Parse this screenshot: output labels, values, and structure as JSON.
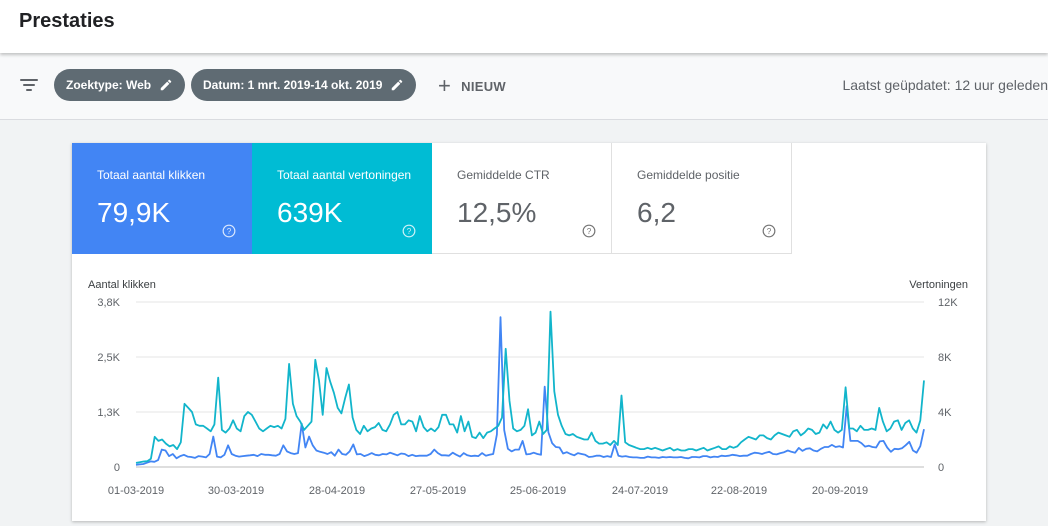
{
  "page": {
    "title": "Prestaties"
  },
  "filterbar": {
    "chips": [
      {
        "label": "Zoektype: Web"
      },
      {
        "label": "Datum: 1 mrt. 2019-14 okt. 2019"
      }
    ],
    "new_label": "NIEUW",
    "updated": "Laatst geüpdatet: 12 uur geleden"
  },
  "metrics": [
    {
      "label": "Totaal aantal klikken",
      "value": "79,9K",
      "color": "#4285f4"
    },
    {
      "label": "Totaal aantal vertoningen",
      "value": "639K",
      "color": "#00bcd4"
    },
    {
      "label": "Gemiddelde CTR",
      "value": "12,5%"
    },
    {
      "label": "Gemiddelde positie",
      "value": "6,2"
    }
  ],
  "chart_data": {
    "type": "line",
    "left_axis_title": "Aantal klikken",
    "right_axis_title": "Vertoningen",
    "left_ticks": [
      "3,8K",
      "2,5K",
      "1,3K",
      "0"
    ],
    "right_ticks": [
      "12K",
      "8K",
      "4K",
      "0"
    ],
    "x_ticks": [
      "01-03-2019",
      "30-03-2019",
      "28-04-2019",
      "27-05-2019",
      "25-06-2019",
      "24-07-2019",
      "22-08-2019",
      "20-09-2019"
    ],
    "left_ylim": [
      0,
      3800
    ],
    "right_ylim": [
      0,
      12000
    ],
    "grid": true,
    "series": [
      {
        "name": "Totaal aantal klikken",
        "axis": "left",
        "color": "#4285f4",
        "values": [
          50,
          60,
          70,
          100,
          130,
          120,
          160,
          400,
          380,
          250,
          300,
          200,
          250,
          280,
          240,
          230,
          210,
          250,
          240,
          220,
          300,
          700,
          240,
          220,
          280,
          500,
          300,
          260,
          240,
          250,
          260,
          270,
          280,
          250,
          300,
          280,
          280,
          270,
          260,
          300,
          500,
          360,
          320,
          300,
          320,
          1000,
          450,
          700,
          500,
          380,
          350,
          330,
          300,
          340,
          260,
          400,
          300,
          280,
          360,
          520,
          290,
          300,
          250,
          280,
          320,
          280,
          270,
          300,
          290,
          330,
          300,
          270,
          310,
          300,
          250,
          280,
          250,
          260,
          260,
          260,
          300,
          400,
          320,
          270,
          270,
          260,
          330,
          280,
          240,
          320,
          270,
          250,
          260,
          250,
          320,
          260,
          280,
          300,
          750,
          3450,
          850,
          420,
          360,
          400,
          400,
          600,
          290,
          300,
          330,
          300,
          280,
          1850,
          800,
          550,
          460,
          450,
          310,
          340,
          300,
          270,
          320,
          300,
          280,
          230,
          240,
          260,
          260,
          230,
          250,
          230,
          520,
          260,
          240,
          250,
          230,
          220,
          220,
          210,
          210,
          240,
          220,
          220,
          210,
          230,
          220,
          230,
          220,
          220,
          230,
          210,
          200,
          230,
          230,
          220,
          250,
          250,
          220,
          240,
          230,
          260,
          250,
          260,
          280,
          270,
          250,
          260,
          260,
          300,
          330,
          320,
          300,
          330,
          350,
          300,
          290,
          320,
          340,
          380,
          350,
          330,
          440,
          370,
          420,
          430,
          380,
          360,
          420,
          460,
          460,
          510,
          460,
          480,
          450,
          1400,
          600,
          600,
          600,
          550,
          470,
          490,
          460,
          450,
          590,
          600,
          450,
          350,
          420,
          410,
          430,
          500,
          580,
          380,
          330,
          480,
          870
        ]
      },
      {
        "name": "Totaal aantal vertoningen",
        "axis": "right",
        "color": "#12b5cb",
        "values": [
          300,
          350,
          400,
          420,
          600,
          2200,
          1900,
          2000,
          1700,
          1500,
          1600,
          1300,
          1800,
          4600,
          4300,
          4000,
          3100,
          3000,
          3000,
          2800,
          2600,
          3100,
          6500,
          2700,
          2500,
          2800,
          3400,
          2800,
          2600,
          3700,
          4000,
          3800,
          3300,
          2800,
          2600,
          2800,
          3000,
          2900,
          3000,
          2800,
          3500,
          7500,
          4600,
          3700,
          3300,
          2700,
          3000,
          3300,
          7800,
          6300,
          3800,
          7200,
          6200,
          5400,
          4300,
          3900,
          5000,
          6000,
          3600,
          2700,
          2400,
          3000,
          2600,
          2800,
          2900,
          3200,
          2700,
          2600,
          3100,
          3800,
          4000,
          3100,
          3100,
          3400,
          3300,
          2600,
          3700,
          2900,
          2600,
          2800,
          2600,
          2900,
          3800,
          3800,
          3100,
          3100,
          2500,
          3700,
          2600,
          3300,
          2200,
          2100,
          2500,
          2100,
          2500,
          2600,
          2800,
          3000,
          3600,
          8600,
          4800,
          2800,
          2600,
          2700,
          3000,
          4200,
          2300,
          2500,
          3300,
          2400,
          2700,
          11300,
          5500,
          3800,
          3000,
          2400,
          2300,
          2400,
          2200,
          2100,
          2000,
          2000,
          2500,
          1900,
          1700,
          1700,
          1800,
          1600,
          1900,
          1600,
          5200,
          1800,
          1600,
          1500,
          1400,
          1300,
          1300,
          1400,
          1300,
          1400,
          1300,
          1200,
          1300,
          1400,
          1200,
          1300,
          1200,
          1200,
          1300,
          1300,
          1200,
          1300,
          1400,
          1200,
          1300,
          1400,
          1500,
          1300,
          1300,
          1500,
          1400,
          1500,
          1800,
          2000,
          2200,
          2100,
          2000,
          2300,
          2300,
          2100,
          2000,
          2300,
          2500,
          2400,
          2300,
          2200,
          2600,
          2700,
          2300,
          2500,
          2800,
          2700,
          2400,
          2500,
          3100,
          2800,
          3300,
          2700,
          2500,
          2700,
          5800,
          2800,
          2800,
          2600,
          3000,
          2700,
          2700,
          2800,
          2700,
          4300,
          3300,
          2600,
          2800,
          3300,
          3400,
          2700,
          3200,
          3400,
          2800,
          2500,
          3400,
          6300
        ]
      }
    ]
  }
}
